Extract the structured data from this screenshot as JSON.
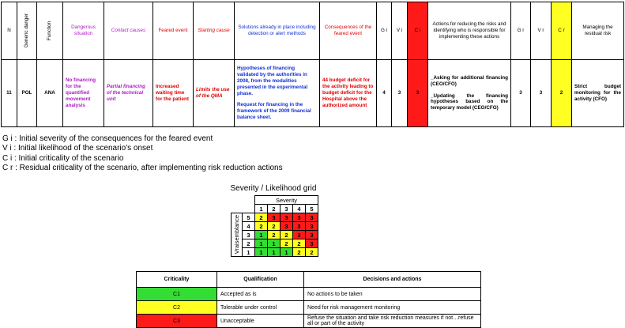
{
  "risk_table": {
    "headers": [
      "N",
      "Generic danger",
      "Function",
      "Dangerous situation",
      "Contact causes",
      "Feared event",
      "Starting cause",
      "Solutions already in place including detection or alert methods",
      "Consequences of the feared event",
      "G i",
      "V i",
      "C i",
      "Actions for reducing the risks and identifying who is responsible for implementing these actions",
      "G r",
      "V r",
      "C r",
      "Managing the residual risk"
    ],
    "row": {
      "n": "11",
      "generic_danger": "POL",
      "function": "ANA",
      "dangerous_situation": "No financing for the quantified movement analysis",
      "contact_causes": "Partial financing of the technical unit",
      "feared_event": "Increased waiting time for the patient",
      "starting_cause": "Limits the use of the QMA",
      "solutions": [
        "Hypotheses of financing validated by the authorities in 2008, from the modalities presented in the experimental phase.",
        "Request for financing in the framework of the 2009 financial balance sheet."
      ],
      "consequences": "44 budget deficit for the activity leading to budget deficit for the Hospital above the authorized amount",
      "gi": "4",
      "vi": "3",
      "ci": "3",
      "actions": [
        "_Asking for additional financing (CEO/CFO)",
        "_Updating the financing hypotheses based on the temporary model (CEO/CFO)"
      ],
      "gr": "3",
      "vr": "3",
      "cr": "2",
      "managing": "Strict budget monitoring for the activity (CFO)"
    }
  },
  "legend": [
    "G i : Initial severity of the consequences for the feared event",
    "V i : Initial likelihood of the scenario's onset",
    "C i : Initial criticality of the scenario",
    "C r : Residual criticality of the scenario, after implementing risk reduction actions"
  ],
  "grid": {
    "title": "Severity / Likelihood grid",
    "column_label": "Severity",
    "row_label": "Vraisemblance",
    "columns": [
      "1",
      "2",
      "3",
      "4",
      "5"
    ],
    "rows": [
      {
        "label": "5",
        "cells": [
          2,
          3,
          3,
          3,
          3
        ]
      },
      {
        "label": "4",
        "cells": [
          2,
          2,
          3,
          3,
          3
        ]
      },
      {
        "label": "3",
        "cells": [
          1,
          2,
          2,
          3,
          3
        ]
      },
      {
        "label": "2",
        "cells": [
          1,
          1,
          2,
          2,
          3
        ]
      },
      {
        "label": "1",
        "cells": [
          1,
          1,
          1,
          2,
          2
        ]
      }
    ],
    "level_colors": [
      "#33dd33",
      "#ffff22",
      "#ff1a1a"
    ]
  },
  "criticality_table": {
    "headers": [
      "Criticality",
      "Qualification",
      "Decisions and actions"
    ],
    "rows": [
      [
        "C1",
        "Accepted as is",
        "No actions to be taken"
      ],
      [
        "C2",
        "Tolerable under control",
        "Need for risk management monitoring"
      ],
      [
        "C3",
        "Unacceptable",
        "Refuse the situation and take risk reduction measures if not…refuse all or part of the activity"
      ]
    ]
  }
}
